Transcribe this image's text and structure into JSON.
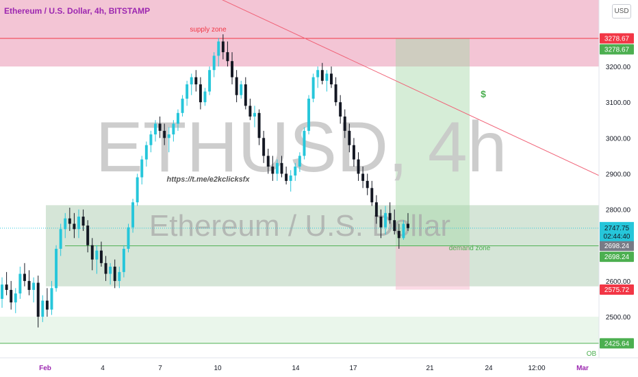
{
  "header": {
    "title": "Ethereum / U.S. Dollar, 4h, BITSTAMP",
    "currency_button": "USD"
  },
  "watermark": {
    "symbol": "ETHUSD, 4h",
    "description": "Ethereum / U.S. Dollar",
    "link": "https://t.me/e2kclicksfx"
  },
  "annotations": {
    "supply_zone": "supply zone",
    "demand_zone": "demand zone",
    "ob": "OB",
    "dollar_sign": "$"
  },
  "price_labels": {
    "current_price": "2747.75",
    "countdown": "02:44:40",
    "tags": [
      {
        "value": 3278.67,
        "text": "3278.67",
        "color": "#f23645"
      },
      {
        "value": 3278.67,
        "text": "3278.67",
        "color": "#4caf50",
        "stack": "below"
      },
      {
        "value": 2698.24,
        "text": "2698.24",
        "color": "#787b86"
      },
      {
        "value": 2698.24,
        "text": "2698.24",
        "color": "#4caf50",
        "stack": "below"
      },
      {
        "value": 2575.72,
        "text": "2575.72",
        "color": "#f23645"
      },
      {
        "value": 2425.64,
        "text": "2425.64",
        "color": "#4caf50"
      }
    ]
  },
  "colors": {
    "up": "#26c6da",
    "down": "#131722",
    "supply": "#f2c2d3",
    "demand": "#d3e4d5",
    "trendline": "#f06277",
    "current": "#26c6da"
  },
  "chart_data": {
    "type": "candlestick",
    "y_ticks": [
      3200,
      3100,
      3000,
      2900,
      2800,
      2600,
      2500
    ],
    "y_tick_labels": [
      "3200.00",
      "3100.00",
      "3000.00",
      "2900.00",
      "2800.00",
      "2600.00",
      "2500.00"
    ],
    "ylim": [
      2380,
      3420
    ],
    "x_tick_labels": [
      "Feb",
      "4",
      "7",
      "10",
      "14",
      "17",
      "21",
      "24",
      "12:00",
      "Mar"
    ],
    "zones": {
      "supply": [
        3200,
        3490
      ],
      "demand": [
        2585,
        2812
      ],
      "ob": [
        2425.64,
        2500
      ]
    },
    "position": {
      "entry": 2698.24,
      "target": 3278.67,
      "stop": 2575.72
    },
    "trendline": {
      "from_price": 3480,
      "to_price": 2895
    },
    "hlines": [
      3278.67,
      2698.24,
      2425.64
    ],
    "candles": [
      [
        2550,
        2610,
        2525,
        2590
      ],
      [
        2590,
        2625,
        2560,
        2575
      ],
      [
        2575,
        2600,
        2520,
        2540
      ],
      [
        2540,
        2580,
        2510,
        2565
      ],
      [
        2565,
        2640,
        2550,
        2620
      ],
      [
        2620,
        2650,
        2585,
        2600
      ],
      [
        2600,
        2630,
        2560,
        2575
      ],
      [
        2575,
        2610,
        2540,
        2595
      ],
      [
        2595,
        2615,
        2470,
        2500
      ],
      [
        2500,
        2560,
        2485,
        2545
      ],
      [
        2545,
        2580,
        2500,
        2520
      ],
      [
        2520,
        2600,
        2505,
        2580
      ],
      [
        2580,
        2700,
        2570,
        2690
      ],
      [
        2690,
        2760,
        2670,
        2745
      ],
      [
        2745,
        2790,
        2720,
        2775
      ],
      [
        2775,
        2805,
        2740,
        2760
      ],
      [
        2760,
        2790,
        2720,
        2745
      ],
      [
        2745,
        2800,
        2720,
        2780
      ],
      [
        2780,
        2800,
        2740,
        2755
      ],
      [
        2755,
        2770,
        2680,
        2700
      ],
      [
        2700,
        2720,
        2630,
        2660
      ],
      [
        2660,
        2700,
        2620,
        2685
      ],
      [
        2685,
        2710,
        2640,
        2650
      ],
      [
        2650,
        2670,
        2600,
        2620
      ],
      [
        2620,
        2650,
        2590,
        2640
      ],
      [
        2640,
        2660,
        2580,
        2600
      ],
      [
        2600,
        2640,
        2580,
        2625
      ],
      [
        2625,
        2700,
        2610,
        2690
      ],
      [
        2690,
        2760,
        2680,
        2750
      ],
      [
        2750,
        2830,
        2735,
        2820
      ],
      [
        2820,
        2900,
        2810,
        2890
      ],
      [
        2890,
        2950,
        2870,
        2940
      ],
      [
        2940,
        2990,
        2920,
        2980
      ],
      [
        2980,
        3020,
        2960,
        3010
      ],
      [
        3010,
        3050,
        2990,
        3040
      ],
      [
        3040,
        3060,
        3000,
        3020
      ],
      [
        3020,
        3040,
        2980,
        3000
      ],
      [
        3000,
        3030,
        2960,
        3010
      ],
      [
        3010,
        3050,
        2990,
        3040
      ],
      [
        3040,
        3080,
        3020,
        3070
      ],
      [
        3070,
        3120,
        3060,
        3110
      ],
      [
        3110,
        3160,
        3090,
        3150
      ],
      [
        3150,
        3180,
        3120,
        3170
      ],
      [
        3170,
        3190,
        3130,
        3150
      ],
      [
        3150,
        3170,
        3080,
        3100
      ],
      [
        3100,
        3140,
        3090,
        3130
      ],
      [
        3130,
        3200,
        3120,
        3190
      ],
      [
        3190,
        3240,
        3170,
        3230
      ],
      [
        3230,
        3280,
        3200,
        3270
      ],
      [
        3270,
        3290,
        3220,
        3240
      ],
      [
        3240,
        3270,
        3200,
        3215
      ],
      [
        3215,
        3240,
        3150,
        3170
      ],
      [
        3170,
        3190,
        3100,
        3120
      ],
      [
        3120,
        3160,
        3110,
        3150
      ],
      [
        3150,
        3170,
        3080,
        3090
      ],
      [
        3090,
        3110,
        3050,
        3060
      ],
      [
        3060,
        3090,
        3030,
        3070
      ],
      [
        3070,
        3080,
        2980,
        3000
      ],
      [
        3000,
        3020,
        2930,
        2950
      ],
      [
        2950,
        2970,
        2900,
        2920
      ],
      [
        2920,
        2950,
        2880,
        2900
      ],
      [
        2900,
        2940,
        2880,
        2930
      ],
      [
        2930,
        2950,
        2890,
        2900
      ],
      [
        2900,
        2920,
        2870,
        2880
      ],
      [
        2880,
        2910,
        2850,
        2895
      ],
      [
        2895,
        2930,
        2880,
        2920
      ],
      [
        2920,
        2960,
        2905,
        2950
      ],
      [
        2950,
        3030,
        2940,
        3020
      ],
      [
        3020,
        3120,
        3010,
        3110
      ],
      [
        3110,
        3180,
        3100,
        3170
      ],
      [
        3170,
        3200,
        3140,
        3190
      ],
      [
        3190,
        3210,
        3150,
        3160
      ],
      [
        3160,
        3190,
        3130,
        3180
      ],
      [
        3180,
        3200,
        3140,
        3150
      ],
      [
        3150,
        3170,
        3090,
        3100
      ],
      [
        3100,
        3120,
        3040,
        3060
      ],
      [
        3060,
        3080,
        3000,
        3020
      ],
      [
        3020,
        3040,
        2960,
        2980
      ],
      [
        2980,
        3000,
        2920,
        2940
      ],
      [
        2940,
        2960,
        2880,
        2900
      ],
      [
        2900,
        2920,
        2860,
        2880
      ],
      [
        2880,
        2900,
        2840,
        2860
      ],
      [
        2860,
        2880,
        2810,
        2820
      ],
      [
        2820,
        2840,
        2760,
        2780
      ],
      [
        2780,
        2800,
        2720,
        2750
      ],
      [
        2750,
        2810,
        2730,
        2790
      ],
      [
        2790,
        2820,
        2760,
        2770
      ],
      [
        2770,
        2800,
        2730,
        2740
      ],
      [
        2740,
        2760,
        2690,
        2720
      ],
      [
        2720,
        2770,
        2715,
        2760
      ],
      [
        2760,
        2790,
        2740,
        2748
      ]
    ]
  }
}
